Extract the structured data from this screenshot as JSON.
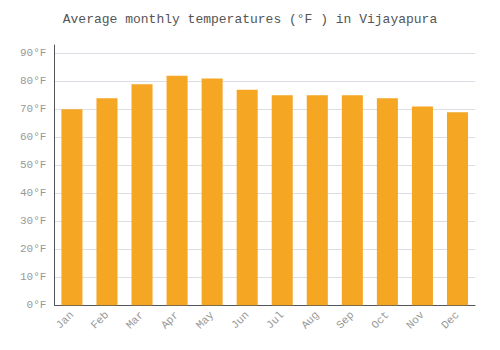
{
  "chart_data": {
    "type": "bar",
    "title": "Average monthly temperatures (°F ) in Vijayapura",
    "categories": [
      "Jan",
      "Feb",
      "Mar",
      "Apr",
      "May",
      "Jun",
      "Jul",
      "Aug",
      "Sep",
      "Oct",
      "Nov",
      "Dec"
    ],
    "values": [
      70,
      74,
      79,
      82,
      81,
      77,
      75,
      75,
      75,
      74,
      71,
      69
    ],
    "color": "#F5A623",
    "ylim": [
      0,
      93
    ],
    "yticks": [
      {
        "value": 0,
        "label": "0°F"
      },
      {
        "value": 10,
        "label": "10°F"
      },
      {
        "value": 20,
        "label": "20°F"
      },
      {
        "value": 30,
        "label": "30°F"
      },
      {
        "value": 40,
        "label": "40°F"
      },
      {
        "value": 50,
        "label": "50°F"
      },
      {
        "value": 60,
        "label": "60°F"
      },
      {
        "value": 70,
        "label": "70°F"
      },
      {
        "value": 80,
        "label": "80°F"
      },
      {
        "value": 90,
        "label": "90°F"
      }
    ],
    "grid": true
  }
}
